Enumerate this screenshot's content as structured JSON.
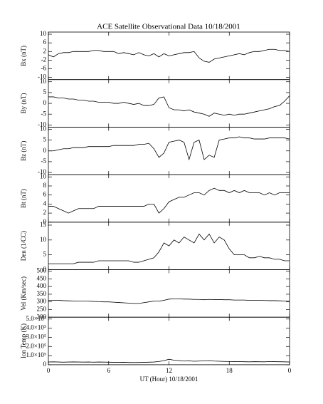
{
  "chart_data": [
    {
      "type": "line",
      "title": "ACE Satellite Observational Data  10/18/2001",
      "ylabel": "Bx (nT)",
      "color": "#000000",
      "x": [
        0,
        0.5,
        1,
        1.5,
        2,
        2.5,
        3,
        3.5,
        4,
        4.5,
        5,
        5.5,
        6,
        6.5,
        7,
        7.5,
        8,
        8.5,
        9,
        9.5,
        10,
        10.5,
        11,
        11.5,
        12,
        12.5,
        13,
        13.5,
        14,
        14.5,
        15,
        15.5,
        16,
        16.5,
        17,
        17.5,
        18,
        18.5,
        19,
        19.5,
        20,
        20.5,
        21,
        21.5,
        22,
        22.5,
        23,
        23.5,
        24
      ],
      "values": [
        0.5,
        -0.5,
        1,
        1.5,
        1.5,
        2,
        2,
        2,
        2,
        2.5,
        2.5,
        2,
        2,
        2,
        1,
        1.5,
        1,
        0.5,
        1.5,
        0.5,
        0,
        1,
        -0.5,
        1,
        0,
        0.5,
        1,
        1.5,
        1.5,
        2,
        -1,
        -2.5,
        -3,
        -1.5,
        -1,
        -0.5,
        0,
        0.5,
        1,
        0.5,
        1.5,
        2,
        2,
        2.5,
        3,
        3,
        2.5,
        2.5,
        2
      ],
      "xlim": [
        0,
        24
      ],
      "ylim": [
        -11,
        11
      ],
      "yticks": [
        10,
        6,
        2,
        -2,
        -6,
        -10
      ]
    },
    {
      "type": "line",
      "ylabel": "By (nT)",
      "color": "#000000",
      "x": [
        0,
        0.5,
        1,
        1.5,
        2,
        2.5,
        3,
        3.5,
        4,
        4.5,
        5,
        5.5,
        6,
        6.5,
        7,
        7.5,
        8,
        8.5,
        9,
        9.5,
        10,
        10.5,
        11,
        11.5,
        12,
        12.5,
        13,
        13.5,
        14,
        14.5,
        15,
        15.5,
        16,
        16.5,
        17,
        17.5,
        18,
        18.5,
        19,
        19.5,
        20,
        20.5,
        21,
        21.5,
        22,
        22.5,
        23,
        23.5,
        24
      ],
      "values": [
        3,
        3,
        2.5,
        2.5,
        2,
        2,
        1.5,
        1.5,
        1,
        1,
        0.5,
        0.5,
        0.5,
        0,
        0,
        0.5,
        0,
        -0.5,
        0,
        -1,
        -1,
        -0.5,
        2.5,
        3,
        -2,
        -3,
        -3,
        -3.5,
        -3,
        -4,
        -4.5,
        -5,
        -6,
        -4.5,
        -5,
        -5.5,
        -5,
        -5.5,
        -5,
        -5,
        -4.5,
        -4,
        -3.5,
        -3,
        -2.5,
        -1.5,
        -1,
        1,
        3.5
      ],
      "xlim": [
        0,
        24
      ],
      "ylim": [
        -11,
        11
      ],
      "yticks": [
        10,
        5,
        0,
        -5,
        -10
      ]
    },
    {
      "type": "line",
      "ylabel": "Bz (nT)",
      "color": "#000000",
      "x": [
        0,
        0.5,
        1,
        1.5,
        2,
        2.5,
        3,
        3.5,
        4,
        4.5,
        5,
        5.5,
        6,
        6.5,
        7,
        7.5,
        8,
        8.5,
        9,
        9.5,
        10,
        10.5,
        11,
        11.5,
        12,
        12.5,
        13,
        13.5,
        14,
        14.5,
        15,
        15.5,
        16,
        16.5,
        17,
        17.5,
        18,
        18.5,
        19,
        19.5,
        20,
        20.5,
        21,
        21.5,
        22,
        22.5,
        23,
        23.5,
        24
      ],
      "values": [
        0,
        0,
        0.5,
        1,
        1,
        1.5,
        1.5,
        1.5,
        2,
        2,
        2,
        2,
        2,
        2.5,
        2.5,
        2.5,
        2.5,
        2.5,
        3,
        3,
        3.5,
        1,
        -3,
        -1,
        4,
        4.5,
        5,
        4,
        -4,
        4,
        5,
        -4,
        -2,
        -3,
        5,
        5.5,
        6,
        6,
        6.5,
        6,
        6,
        5.5,
        5.5,
        5.5,
        6,
        6,
        6,
        6,
        5.5
      ],
      "xlim": [
        0,
        24
      ],
      "ylim": [
        -11,
        11
      ],
      "yticks": [
        10,
        5,
        0,
        -5,
        -10
      ]
    },
    {
      "type": "line",
      "ylabel": "Bt (nT)",
      "color": "#000000",
      "x": [
        0,
        0.5,
        1,
        1.5,
        2,
        2.5,
        3,
        3.5,
        4,
        4.5,
        5,
        5.5,
        6,
        6.5,
        7,
        7.5,
        8,
        8.5,
        9,
        9.5,
        10,
        10.5,
        11,
        11.5,
        12,
        12.5,
        13,
        13.5,
        14,
        14.5,
        15,
        15.5,
        16,
        16.5,
        17,
        17.5,
        18,
        18.5,
        19,
        19.5,
        20,
        20.5,
        21,
        21.5,
        22,
        22.5,
        23,
        23.5,
        24
      ],
      "values": [
        3.5,
        3.5,
        3,
        2.5,
        2,
        2.5,
        3,
        3,
        3,
        3,
        3.5,
        3.5,
        3.5,
        3.5,
        3.5,
        3.5,
        3.5,
        3.5,
        3.5,
        3.5,
        4,
        4,
        2,
        3,
        4.5,
        5,
        5.5,
        5.5,
        6,
        6.5,
        6.5,
        6,
        7,
        7.5,
        7,
        7,
        6.5,
        7,
        6.5,
        7,
        6.5,
        6.5,
        6.5,
        6,
        6.5,
        6,
        6.5,
        6.5,
        6.5
      ],
      "xlim": [
        0,
        24
      ],
      "ylim": [
        0,
        10.5
      ],
      "yticks": [
        10,
        8,
        6,
        4,
        2,
        0
      ]
    },
    {
      "type": "line",
      "ylabel": "Den (1/CC)",
      "color": "#000000",
      "x": [
        0,
        0.5,
        1,
        1.5,
        2,
        2.5,
        3,
        3.5,
        4,
        4.5,
        5,
        5.5,
        6,
        6.5,
        7,
        7.5,
        8,
        8.5,
        9,
        9.5,
        10,
        10.5,
        11,
        11.5,
        12,
        12.5,
        13,
        13.5,
        14,
        14.5,
        15,
        15.5,
        16,
        16.5,
        17,
        17.5,
        18,
        18.5,
        19,
        19.5,
        20,
        20.5,
        21,
        21.5,
        22,
        22.5,
        23,
        23.5,
        24
      ],
      "values": [
        2,
        2,
        2,
        2,
        2,
        2,
        2.5,
        2.5,
        2.5,
        2.5,
        3,
        3,
        3,
        3,
        3,
        3,
        3,
        2.5,
        2.5,
        3,
        3.5,
        4,
        6,
        9,
        8,
        10,
        9,
        11,
        10,
        9,
        12,
        10,
        12,
        9,
        11,
        10,
        7,
        5,
        5,
        5,
        4,
        4,
        4.5,
        4,
        4,
        3.5,
        3.5,
        3,
        3
      ],
      "xlim": [
        0,
        24
      ],
      "ylim": [
        0,
        16
      ],
      "yticks": [
        15,
        10,
        5,
        0
      ]
    },
    {
      "type": "line",
      "ylabel": "Vel (Km/sec)",
      "color": "#000000",
      "x": [
        0,
        0.5,
        1,
        1.5,
        2,
        2.5,
        3,
        3.5,
        4,
        4.5,
        5,
        5.5,
        6,
        6.5,
        7,
        7.5,
        8,
        8.5,
        9,
        9.5,
        10,
        10.5,
        11,
        11.5,
        12,
        12.5,
        13,
        13.5,
        14,
        14.5,
        15,
        15.5,
        16,
        16.5,
        17,
        17.5,
        18,
        18.5,
        19,
        19.5,
        20,
        20.5,
        21,
        21.5,
        22,
        22.5,
        23,
        23.5,
        24
      ],
      "values": [
        310,
        310,
        310,
        308,
        307,
        306,
        305,
        305,
        305,
        303,
        302,
        300,
        300,
        298,
        296,
        294,
        292,
        290,
        290,
        295,
        300,
        305,
        305,
        310,
        318,
        320,
        320,
        318,
        318,
        316,
        316,
        314,
        316,
        315,
        315,
        314,
        314,
        312,
        312,
        312,
        310,
        310,
        310,
        309,
        308,
        308,
        307,
        306,
        305
      ],
      "xlim": [
        0,
        24
      ],
      "ylim": [
        200,
        510
      ],
      "yticks": [
        500,
        450,
        400,
        350,
        300,
        250,
        200
      ]
    },
    {
      "type": "line",
      "ylabel": "Ion Temp (K)",
      "color": "#000000",
      "x": [
        0,
        0.5,
        1,
        1.5,
        2,
        2.5,
        3,
        3.5,
        4,
        4.5,
        5,
        5.5,
        6,
        6.5,
        7,
        7.5,
        8,
        8.5,
        9,
        9.5,
        10,
        10.5,
        11,
        11.5,
        12,
        12.5,
        13,
        13.5,
        14,
        14.5,
        15,
        15.5,
        16,
        16.5,
        17,
        17.5,
        18,
        18.5,
        19,
        19.5,
        20,
        20.5,
        21,
        21.5,
        22,
        22.5,
        23,
        23.5,
        24
      ],
      "values": [
        30000,
        32000,
        30000,
        28000,
        30000,
        31000,
        30000,
        29000,
        30000,
        28000,
        30000,
        29000,
        28000,
        27000,
        26000,
        27000,
        25000,
        24000,
        25000,
        26000,
        28000,
        30000,
        35000,
        45000,
        60000,
        50000,
        45000,
        40000,
        42000,
        38000,
        40000,
        42000,
        45000,
        40000,
        38000,
        36000,
        35000,
        34000,
        35000,
        33000,
        32000,
        34000,
        33000,
        32000,
        35000,
        34000,
        33000,
        32000,
        30000
      ],
      "xlim": [
        0,
        24
      ],
      "ylim": [
        0,
        520000
      ],
      "yticks": [
        {
          "value": 500000,
          "label": "5.0×10⁵"
        },
        {
          "value": 400000,
          "label": "4.0×10⁵"
        },
        {
          "value": 300000,
          "label": "3.0×10⁵"
        },
        {
          "value": 200000,
          "label": "2.0×10⁵"
        },
        {
          "value": 100000,
          "label": "1.0×10⁵"
        },
        0
      ],
      "xlabel": "UT (Hour)  10/18/2001",
      "xticks": [
        0,
        6,
        12,
        18,
        {
          "value": 24,
          "label": "0"
        }
      ]
    }
  ]
}
